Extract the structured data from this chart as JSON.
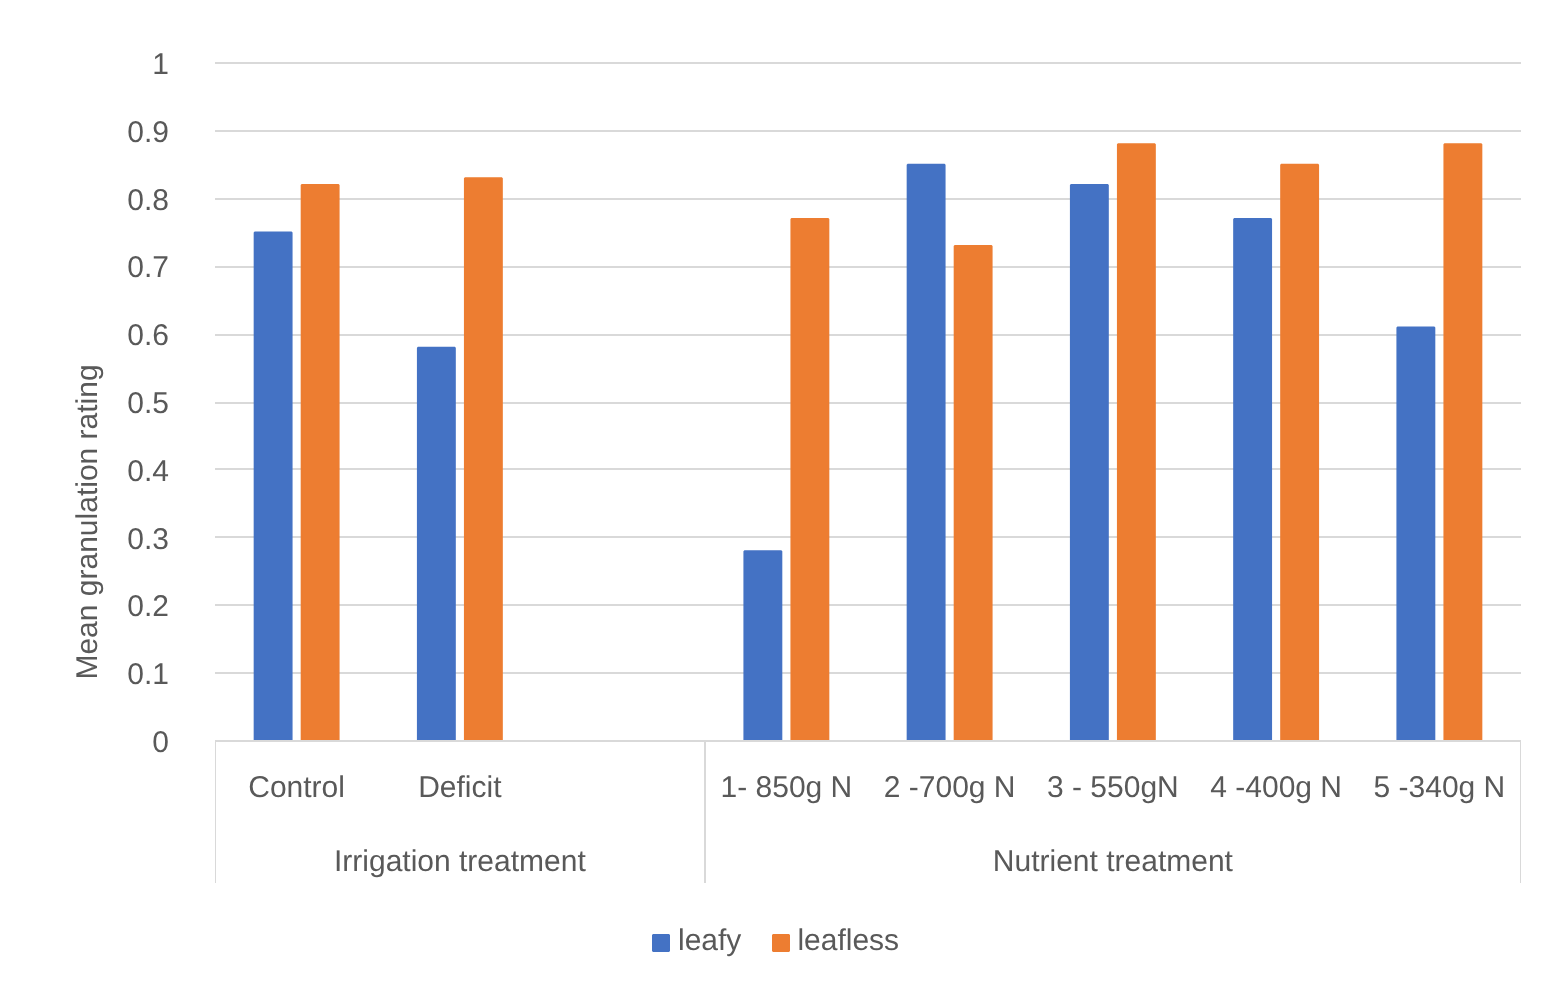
{
  "chart_data": {
    "type": "bar",
    "ylabel": "Mean granulation rating",
    "categories": [
      "Control",
      "Deficit",
      null,
      "1- 850g N",
      "2 -700g N",
      "3 - 550gN",
      "4 -400g N",
      "5 -340g N"
    ],
    "series": [
      {
        "name": "leafy",
        "color": "#4472c4",
        "values": [
          0.75,
          0.58,
          null,
          0.28,
          0.85,
          0.82,
          0.77,
          0.61
        ]
      },
      {
        "name": "leafless",
        "color": "#ed7d31",
        "values": [
          0.82,
          0.83,
          null,
          0.77,
          0.73,
          0.88,
          0.85,
          0.88
        ]
      }
    ],
    "ylim": [
      0,
      1
    ],
    "yticks": [
      0,
      0.1,
      0.2,
      0.3,
      0.4,
      0.5,
      0.6,
      0.7,
      0.8,
      0.9,
      1
    ],
    "grid": "y",
    "legend": "bottom",
    "annotations": [
      "Irrigation treatment",
      "Nutrient treatment"
    ]
  }
}
